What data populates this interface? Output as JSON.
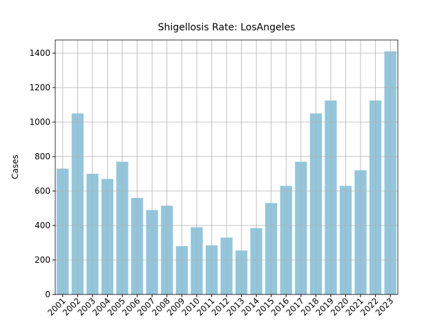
{
  "chart_data": {
    "type": "bar",
    "title": "Shigellosis Rate: LosAngeles",
    "y_label": "Cases",
    "categories": [
      "2001",
      "2002",
      "2003",
      "2004",
      "2005",
      "2006",
      "2007",
      "2008",
      "2009",
      "2010",
      "2011",
      "2012",
      "2013",
      "2014",
      "2015",
      "2016",
      "2017",
      "2018",
      "2019",
      "2020",
      "2021",
      "2022",
      "2023"
    ],
    "values": [
      730,
      1050,
      700,
      670,
      770,
      560,
      490,
      515,
      280,
      390,
      285,
      330,
      255,
      385,
      530,
      630,
      770,
      1050,
      1125,
      630,
      720,
      1125,
      1410
    ],
    "color": "#92c6dc",
    "ylim": [
      0,
      1476
    ],
    "yticks": [
      0,
      200,
      400,
      600,
      800,
      1000,
      1200,
      1400
    ],
    "grid": true
  }
}
